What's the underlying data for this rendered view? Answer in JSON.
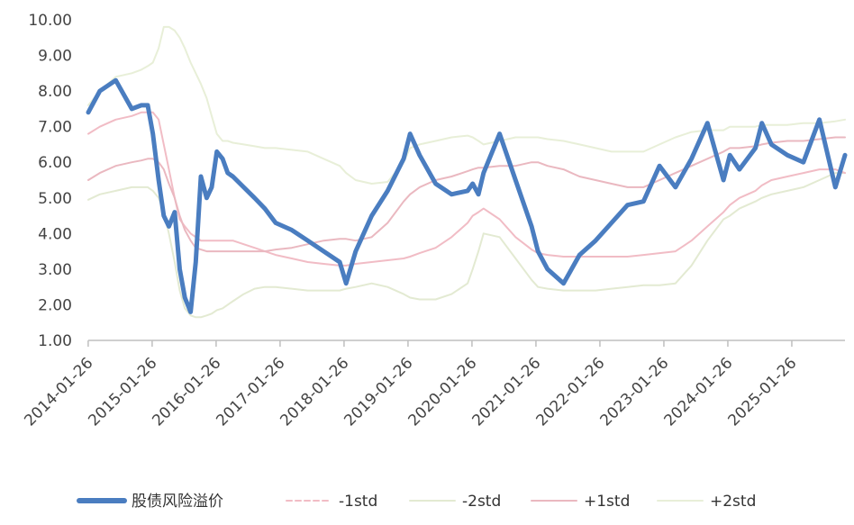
{
  "chart_data": {
    "type": "line",
    "title": "",
    "xlabel": "",
    "ylabel": "",
    "ylim": [
      1.0,
      10.0
    ],
    "y_ticks": [
      "1.00",
      "2.00",
      "3.00",
      "4.00",
      "5.00",
      "6.00",
      "7.00",
      "8.00",
      "9.00",
      "10.00"
    ],
    "x_ticks": [
      "2014-01-26",
      "2015-01-26",
      "2016-01-26",
      "2017-01-26",
      "2018-01-26",
      "2019-01-26",
      "2020-01-26",
      "2021-01-26",
      "2022-01-26",
      "2023-01-26",
      "2024-01-26",
      "2025-01-26"
    ],
    "grid": false,
    "legend_position": "bottom",
    "x": [
      2014.07,
      2014.25,
      2014.5,
      2014.75,
      2014.9,
      2015.0,
      2015.08,
      2015.17,
      2015.25,
      2015.33,
      2015.42,
      2015.5,
      2015.58,
      2015.67,
      2015.75,
      2015.83,
      2015.92,
      2016.0,
      2016.08,
      2016.17,
      2016.25,
      2016.33,
      2016.5,
      2016.67,
      2016.83,
      2017.0,
      2017.25,
      2017.5,
      2017.75,
      2018.0,
      2018.1,
      2018.25,
      2018.5,
      2018.75,
      2019.0,
      2019.1,
      2019.25,
      2019.5,
      2019.75,
      2020.0,
      2020.08,
      2020.17,
      2020.25,
      2020.5,
      2020.75,
      2021.0,
      2021.1,
      2021.25,
      2021.5,
      2021.75,
      2022.0,
      2022.25,
      2022.5,
      2022.75,
      2023.0,
      2023.25,
      2023.5,
      2023.75,
      2024.0,
      2024.1,
      2024.25,
      2024.5,
      2024.6,
      2024.75,
      2025.0,
      2025.25,
      2025.5,
      2025.75,
      2025.9
    ],
    "series": [
      {
        "name": "股债风险溢价",
        "color": "#4a7dc0",
        "values": [
          7.4,
          8.0,
          8.3,
          7.5,
          7.6,
          7.6,
          6.8,
          5.5,
          4.5,
          4.2,
          4.6,
          3.0,
          2.2,
          1.8,
          3.2,
          5.6,
          5.0,
          5.3,
          6.3,
          6.1,
          5.7,
          5.6,
          5.3,
          5.0,
          4.7,
          4.3,
          4.1,
          3.8,
          3.5,
          3.2,
          2.6,
          3.5,
          4.5,
          5.2,
          6.1,
          6.8,
          6.2,
          5.4,
          5.1,
          5.2,
          5.4,
          5.1,
          5.7,
          6.8,
          5.5,
          4.2,
          3.5,
          3.0,
          2.6,
          3.4,
          3.8,
          4.3,
          4.8,
          4.9,
          5.9,
          5.3,
          6.1,
          7.1,
          5.5,
          6.2,
          5.8,
          6.4,
          7.1,
          6.5,
          6.2,
          6.0,
          7.2,
          5.3,
          6.2
        ]
      },
      {
        "name": "-1std",
        "color": "#f1bcc5",
        "values": [
          6.8,
          7.0,
          7.2,
          7.3,
          7.4,
          7.4,
          7.4,
          7.2,
          6.5,
          5.8,
          5.0,
          4.4,
          4.2,
          4.0,
          3.9,
          3.8,
          3.8,
          3.8,
          3.8,
          3.8,
          3.8,
          3.8,
          3.7,
          3.6,
          3.5,
          3.4,
          3.3,
          3.2,
          3.15,
          3.1,
          3.1,
          3.15,
          3.2,
          3.25,
          3.3,
          3.35,
          3.45,
          3.6,
          3.9,
          4.3,
          4.5,
          4.6,
          4.7,
          4.4,
          3.9,
          3.55,
          3.45,
          3.4,
          3.35,
          3.35,
          3.35,
          3.35,
          3.35,
          3.4,
          3.45,
          3.5,
          3.8,
          4.2,
          4.6,
          4.8,
          5.0,
          5.2,
          5.35,
          5.5,
          5.6,
          5.7,
          5.8,
          5.8,
          5.7
        ]
      },
      {
        "name": "-2std",
        "color": "#e3ead2",
        "values": [
          4.95,
          5.1,
          5.2,
          5.3,
          5.3,
          5.3,
          5.2,
          5.0,
          4.6,
          4.0,
          3.2,
          2.4,
          1.9,
          1.7,
          1.65,
          1.65,
          1.7,
          1.75,
          1.85,
          1.9,
          2.0,
          2.1,
          2.3,
          2.45,
          2.5,
          2.5,
          2.45,
          2.4,
          2.4,
          2.4,
          2.45,
          2.5,
          2.6,
          2.5,
          2.3,
          2.2,
          2.15,
          2.15,
          2.3,
          2.6,
          3.0,
          3.5,
          4.0,
          3.9,
          3.3,
          2.7,
          2.5,
          2.45,
          2.4,
          2.4,
          2.4,
          2.45,
          2.5,
          2.55,
          2.55,
          2.6,
          3.1,
          3.8,
          4.4,
          4.5,
          4.7,
          4.9,
          5.0,
          5.1,
          5.2,
          5.3,
          5.5,
          5.7,
          5.7
        ]
      },
      {
        "name": "+1std",
        "color": "#eab8c0",
        "values": [
          5.5,
          5.7,
          5.9,
          6.0,
          6.05,
          6.1,
          6.1,
          6.0,
          5.8,
          5.4,
          5.0,
          4.5,
          4.1,
          3.8,
          3.6,
          3.55,
          3.5,
          3.5,
          3.5,
          3.5,
          3.5,
          3.5,
          3.5,
          3.5,
          3.5,
          3.55,
          3.6,
          3.7,
          3.8,
          3.85,
          3.85,
          3.8,
          3.9,
          4.3,
          4.9,
          5.1,
          5.3,
          5.5,
          5.6,
          5.75,
          5.8,
          5.85,
          5.85,
          5.9,
          5.9,
          6.0,
          6.0,
          5.9,
          5.8,
          5.6,
          5.5,
          5.4,
          5.3,
          5.3,
          5.5,
          5.7,
          5.9,
          6.1,
          6.3,
          6.4,
          6.4,
          6.45,
          6.5,
          6.55,
          6.6,
          6.6,
          6.65,
          6.7,
          6.7
        ]
      },
      {
        "name": "+2std",
        "color": "#e8efd8",
        "values": [
          7.6,
          8.0,
          8.4,
          8.5,
          8.6,
          8.7,
          8.8,
          9.2,
          9.8,
          9.8,
          9.7,
          9.5,
          9.2,
          8.8,
          8.5,
          8.2,
          7.8,
          7.3,
          6.8,
          6.6,
          6.6,
          6.55,
          6.5,
          6.45,
          6.4,
          6.4,
          6.35,
          6.3,
          6.1,
          5.9,
          5.7,
          5.5,
          5.4,
          5.45,
          6.0,
          6.4,
          6.5,
          6.6,
          6.7,
          6.75,
          6.7,
          6.6,
          6.5,
          6.6,
          6.7,
          6.7,
          6.7,
          6.65,
          6.6,
          6.5,
          6.4,
          6.3,
          6.3,
          6.3,
          6.5,
          6.7,
          6.85,
          6.9,
          6.9,
          7.0,
          7.0,
          7.0,
          7.05,
          7.05,
          7.05,
          7.1,
          7.1,
          7.15,
          7.2
        ]
      }
    ]
  }
}
